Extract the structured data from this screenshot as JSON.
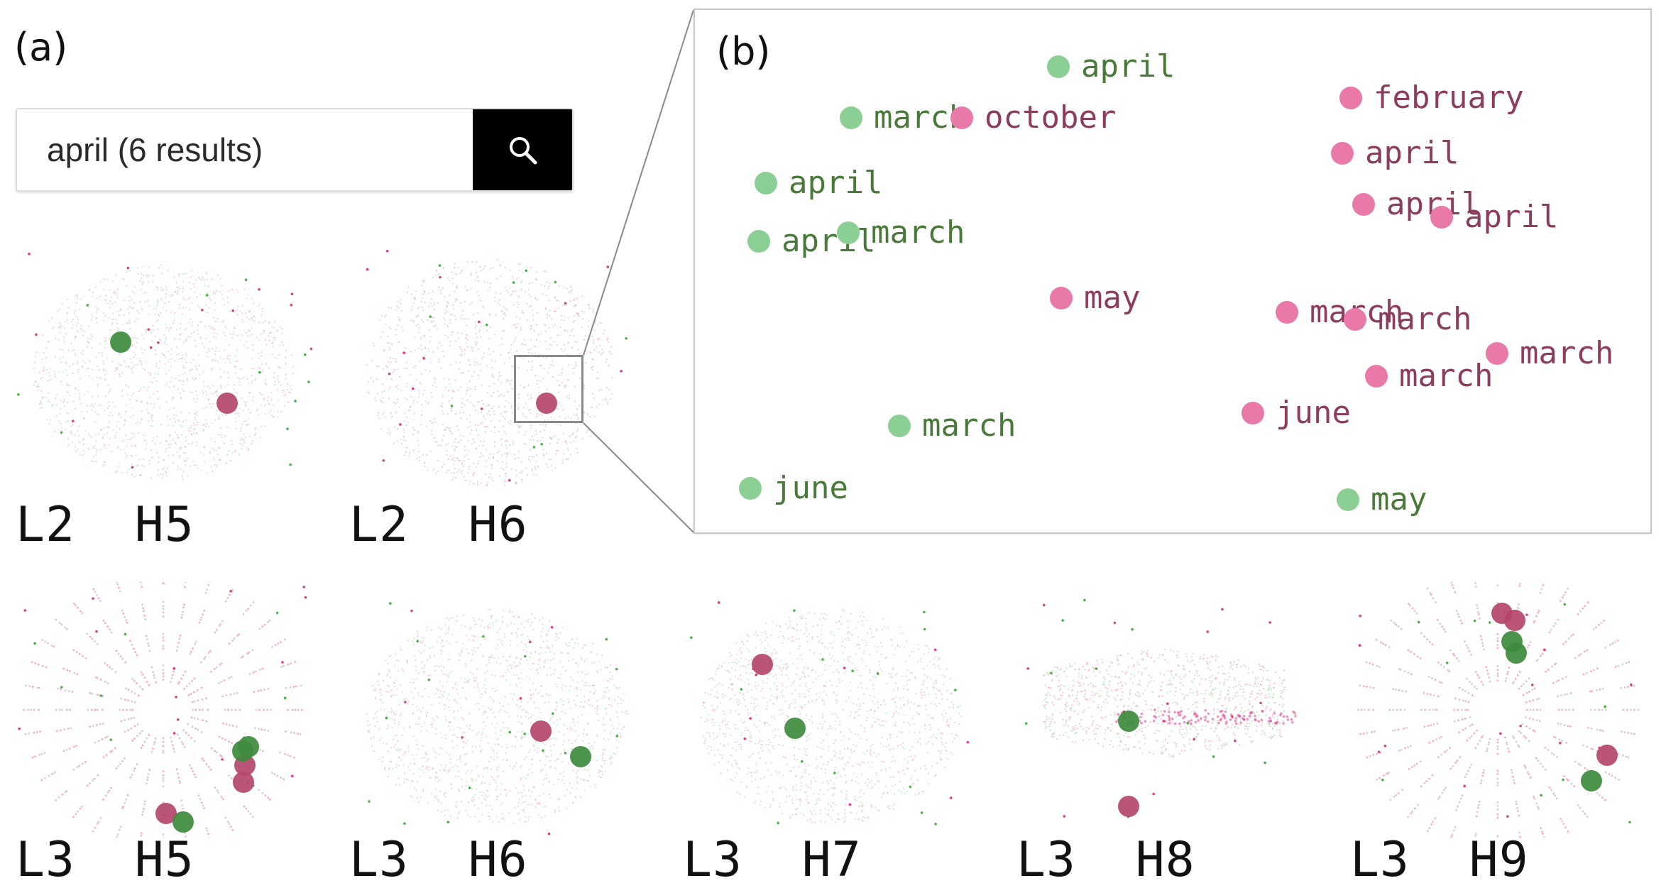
{
  "panel_a_label": "(a)",
  "panel_b_label": "(b)",
  "search": {
    "value": "april (6 results)",
    "button_icon": "search-icon"
  },
  "colors": {
    "green_dot": "#3d8b3d",
    "pink_dot": "#b5476b",
    "green_label": "#4a7a3a",
    "pink_label": "#8c3c5c",
    "green_zoom_dot": "#8ccf95",
    "pink_zoom_dot": "#e879a8"
  },
  "heads": [
    {
      "label": "L2  H5"
    },
    {
      "label": "L2  H6"
    },
    {
      "label": "L3  H5"
    },
    {
      "label": "L3  H6"
    },
    {
      "label": "L3  H7"
    },
    {
      "label": "L3  H8"
    },
    {
      "label": "L3  H9"
    }
  ],
  "zoom_points": [
    {
      "text": "april",
      "color": "green"
    },
    {
      "text": "march",
      "color": "green"
    },
    {
      "text": "october",
      "color": "pink"
    },
    {
      "text": "april",
      "color": "green"
    },
    {
      "text": "april",
      "color": "green"
    },
    {
      "text": "march",
      "color": "green"
    },
    {
      "text": "may",
      "color": "pink"
    },
    {
      "text": "march",
      "color": "green"
    },
    {
      "text": "june",
      "color": "green"
    },
    {
      "text": "february",
      "color": "pink"
    },
    {
      "text": "april",
      "color": "pink"
    },
    {
      "text": "april",
      "color": "pink"
    },
    {
      "text": "april",
      "color": "pink"
    },
    {
      "text": "march",
      "color": "pink"
    },
    {
      "text": "march",
      "color": "pink"
    },
    {
      "text": "march",
      "color": "pink"
    },
    {
      "text": "march",
      "color": "pink"
    },
    {
      "text": "june",
      "color": "pink"
    },
    {
      "text": "may",
      "color": "green"
    }
  ]
}
